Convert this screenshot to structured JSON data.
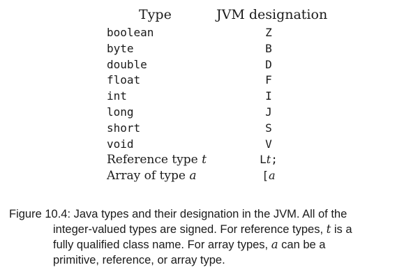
{
  "table": {
    "header_type": "Type",
    "header_jvm": "JVM designation",
    "rows": [
      {
        "type": "boolean",
        "designation": "Z"
      },
      {
        "type": "byte",
        "designation": "B"
      },
      {
        "type": "double",
        "designation": "D"
      },
      {
        "type": "float",
        "designation": "F"
      },
      {
        "type": "int",
        "designation": "I"
      },
      {
        "type": "long",
        "designation": "J"
      },
      {
        "type": "short",
        "designation": "S"
      },
      {
        "type": "void",
        "designation": "V"
      },
      {
        "type_prefix": "Reference type ",
        "type_var": "t",
        "desig_prefix": "L",
        "desig_var": "t",
        "desig_suffix": ";"
      },
      {
        "type_prefix": "Array of type ",
        "type_var": "a",
        "desig_prefix": "[",
        "desig_var": "a"
      }
    ]
  },
  "caption": {
    "line1": "Figure 10.4: Java types and their designation in the JVM. All of the",
    "line2": "integer-valued types are signed. For reference types, ",
    "line2_var": "t",
    "line2_end": " is a",
    "line3": "fully qualified class name. For array types, ",
    "line3_var": "a",
    "line3_end": " can be a",
    "line4": "primitive, reference, or array type."
  }
}
